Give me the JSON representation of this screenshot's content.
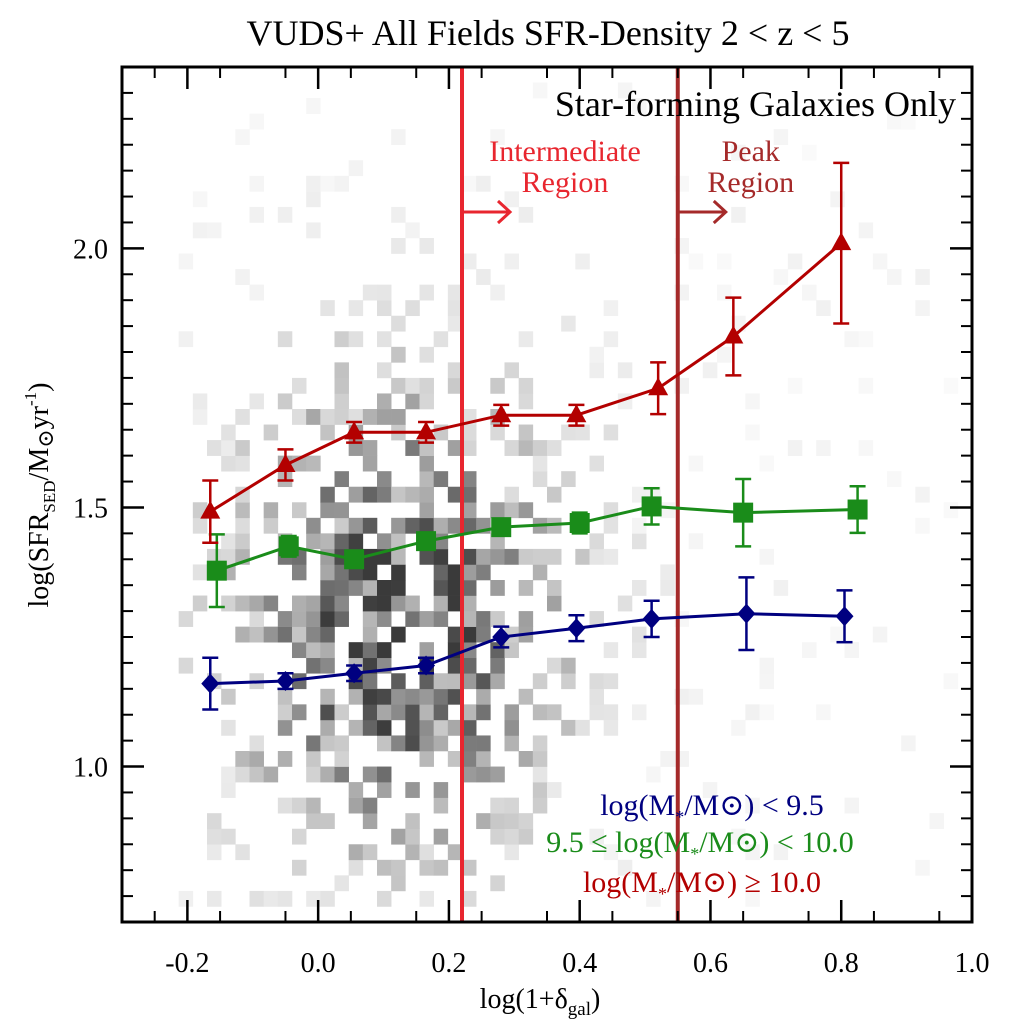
{
  "chart_data": {
    "type": "line",
    "title": "VUDS+ All Fields SFR-Density 2 < z < 5",
    "subtitle": "Star-forming Galaxies Only",
    "xlabel": {
      "base": "log(1+δ",
      "sub": "gal",
      "tail": ")"
    },
    "ylabel": {
      "p1": "log(SFR",
      "sub": "SED",
      "p2": "/M",
      "sun": "⊙",
      "p3": "yr",
      "sup": "-1",
      "p4": ")"
    },
    "xlim": [
      -0.3,
      1.0
    ],
    "ylim": [
      0.7,
      2.35
    ],
    "x_ticks": [
      {
        "v": -0.2,
        "label": "-0.2"
      },
      {
        "v": 0.0,
        "label": "0.0"
      },
      {
        "v": 0.2,
        "label": "0.2"
      },
      {
        "v": 0.4,
        "label": "0.4"
      },
      {
        "v": 0.6,
        "label": "0.6"
      },
      {
        "v": 0.8,
        "label": "0.8"
      },
      {
        "v": 1.0,
        "label": "1.0"
      }
    ],
    "y_ticks": [
      {
        "v": 1.0,
        "label": "1.0"
      },
      {
        "v": 1.5,
        "label": "1.5"
      },
      {
        "v": 2.0,
        "label": "2.0"
      }
    ],
    "vlines": [
      {
        "x": 0.22,
        "color": "#e8262f",
        "label": [
          "Intermediate",
          "Region"
        ]
      },
      {
        "x": 0.55,
        "color": "#a52a2a",
        "label": [
          "Peak",
          "Region"
        ]
      }
    ],
    "series": [
      {
        "name": "log(M*/M⊙) < 9.5",
        "legend": {
          "pre": "log(M",
          "sub": "*",
          "mid": "/M",
          "sun": "⊙",
          "post": ") < 9.5"
        },
        "color": "#000080",
        "marker": "diamond",
        "points": [
          {
            "x": -0.165,
            "y": 1.16,
            "err": 0.05
          },
          {
            "x": -0.05,
            "y": 1.165,
            "err": 0.015
          },
          {
            "x": 0.055,
            "y": 1.18,
            "err": 0.015
          },
          {
            "x": 0.165,
            "y": 1.195,
            "err": 0.015
          },
          {
            "x": 0.28,
            "y": 1.25,
            "err": 0.02
          },
          {
            "x": 0.395,
            "y": 1.267,
            "err": 0.025
          },
          {
            "x": 0.51,
            "y": 1.285,
            "err": 0.035
          },
          {
            "x": 0.655,
            "y": 1.295,
            "err": 0.07
          },
          {
            "x": 0.805,
            "y": 1.29,
            "err": 0.05
          }
        ]
      },
      {
        "name": "9.5 ≤ log(M*/M⊙) < 10.0",
        "legend": {
          "pre": "9.5 ≤ log(M",
          "sub": "*",
          "mid": "/M",
          "sun": "⊙",
          "post": ") < 10.0"
        },
        "color": "#1a8c1a",
        "marker": "square",
        "points": [
          {
            "x": -0.155,
            "y": 1.378,
            "err": 0.07
          },
          {
            "x": -0.045,
            "y": 1.425,
            "err": 0.02
          },
          {
            "x": 0.055,
            "y": 1.4,
            "err": 0.015
          },
          {
            "x": 0.165,
            "y": 1.435,
            "err": 0.015
          },
          {
            "x": 0.28,
            "y": 1.462,
            "err": 0.015
          },
          {
            "x": 0.4,
            "y": 1.47,
            "err": 0.02
          },
          {
            "x": 0.51,
            "y": 1.502,
            "err": 0.035
          },
          {
            "x": 0.65,
            "y": 1.49,
            "err": 0.065
          },
          {
            "x": 0.825,
            "y": 1.496,
            "err": 0.045
          }
        ]
      },
      {
        "name": "log(M*/M⊙) ≥ 10.0",
        "legend": {
          "pre": "log(M",
          "sub": "*",
          "mid": "/M",
          "sun": "⊙",
          "post": ") ≥ 10.0"
        },
        "color": "#b30000",
        "marker": "triangle",
        "points": [
          {
            "x": -0.165,
            "y": 1.492,
            "err": 0.06
          },
          {
            "x": -0.05,
            "y": 1.582,
            "err": 0.03
          },
          {
            "x": 0.055,
            "y": 1.645,
            "err": 0.02
          },
          {
            "x": 0.165,
            "y": 1.645,
            "err": 0.02
          },
          {
            "x": 0.28,
            "y": 1.678,
            "err": 0.02
          },
          {
            "x": 0.395,
            "y": 1.678,
            "err": 0.02
          },
          {
            "x": 0.52,
            "y": 1.73,
            "err": 0.05
          },
          {
            "x": 0.635,
            "y": 1.83,
            "err": 0.075
          },
          {
            "x": 0.8,
            "y": 2.01,
            "err": 0.155
          }
        ]
      }
    ],
    "background_density": {
      "kind": "2d-histogram",
      "bins_x": 60,
      "bins_y": 55,
      "x_center": 0.12,
      "x_sigma": 0.17,
      "y_center": 1.28,
      "y_sigma": 0.3,
      "x_extent": [
        -0.22,
        0.98
      ],
      "y_extent": [
        0.72,
        2.33
      ],
      "seed": 7
    }
  }
}
